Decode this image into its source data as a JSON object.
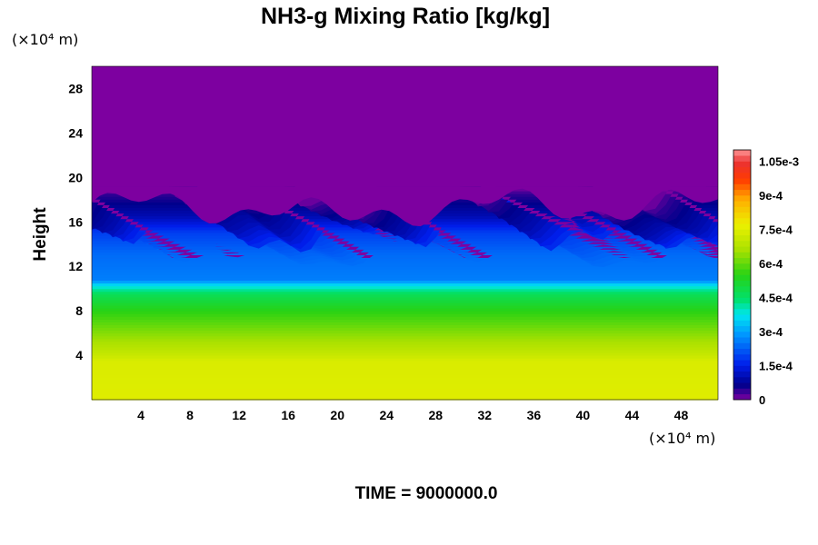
{
  "chart_data": {
    "type": "heatmap",
    "title": "NH3-g Mixing Ratio [kg/kg]",
    "xlabel": "",
    "ylabel": "Height",
    "x_unit": "(×10⁴ m)",
    "y_unit": "(×10⁴ m)",
    "xlim": [
      0,
      51
    ],
    "ylim": [
      0,
      30
    ],
    "x_ticks": [
      4,
      8,
      12,
      16,
      20,
      24,
      28,
      32,
      36,
      40,
      44,
      48
    ],
    "y_ticks": [
      4,
      8,
      12,
      16,
      20,
      24,
      28
    ],
    "colorbar": {
      "range": [
        0,
        0.0011
      ],
      "levels": 44,
      "tick_values": [
        0,
        0.00015,
        0.0003,
        0.00045,
        0.0006,
        0.00075,
        0.0009,
        0.00105
      ],
      "tick_labels": [
        "0",
        "1.5e-4",
        "3e-4",
        "4.5e-4",
        "6e-4",
        "7.5e-4",
        "9e-4",
        "1.05e-3"
      ]
    },
    "profile_by_height": [
      {
        "z": 0,
        "value": 0.00075
      },
      {
        "z": 3.5,
        "value": 0.00074
      },
      {
        "z": 4,
        "value": 0.00071
      },
      {
        "z": 6,
        "value": 0.00063
      },
      {
        "z": 8,
        "value": 0.00055
      },
      {
        "z": 9.5,
        "value": 0.00047
      },
      {
        "z": 10.3,
        "value": 0.00037
      },
      {
        "z": 10.8,
        "value": 0.00026
      },
      {
        "z": 13,
        "value": 0.00024
      },
      {
        "z": 15,
        "value": 0.00019
      },
      {
        "z": 16.5,
        "value": 0.0001
      },
      {
        "z": 18.5,
        "value": 4e-05
      },
      {
        "z": 19,
        "value": 0
      },
      {
        "z": 30,
        "value": 0
      }
    ],
    "grid": false,
    "legend": "colorbar-right"
  },
  "footer": {
    "time_label": "TIME = 9000000.0"
  }
}
